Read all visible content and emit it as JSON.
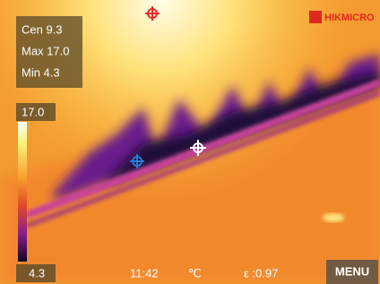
{
  "readouts": [
    "Cen 9.3",
    "Max 17.0",
    "Min 4.3"
  ],
  "scale": {
    "max": "17.0",
    "min": "4.3"
  },
  "brand": "HIKMICRO",
  "status": {
    "time": "11:42",
    "unit": "℃",
    "emissivity": "ε :0.97"
  },
  "menu_button": "MENU"
}
